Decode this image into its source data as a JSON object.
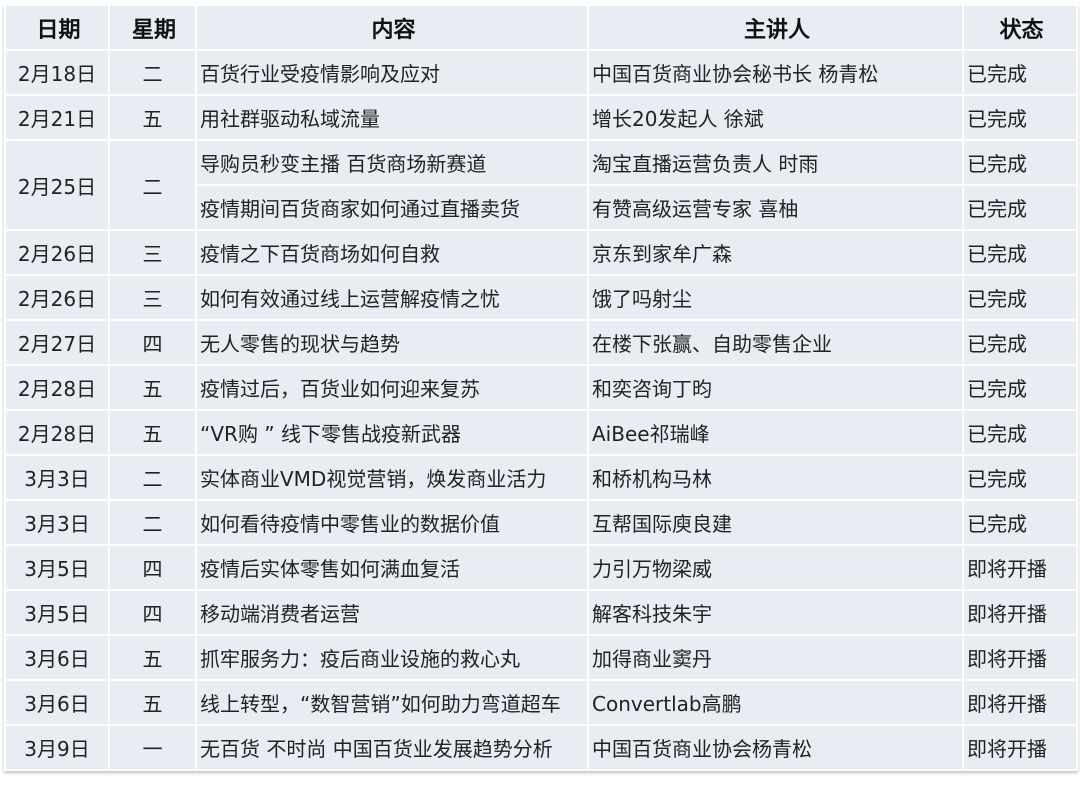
{
  "headers": [
    "日期",
    "星期",
    "内容",
    "主讲人",
    "状态"
  ],
  "rows": [
    {
      "date": "2月18日",
      "weekday": "二",
      "topic": "百货行业受疫情影响及应对",
      "speaker": "中国百货商业协会秘书长 杨青松",
      "status": "已完成"
    },
    {
      "date": "2月21日",
      "weekday": "五",
      "topic": "用社群驱动私域流量",
      "speaker": "增长20发起人  徐斌",
      "status": "已完成"
    },
    {
      "date": "2月25日",
      "weekday": "二",
      "topic": "导购员秒变主播 百货商场新赛道",
      "speaker": "淘宝直播运营负责人 时雨",
      "status": "已完成"
    },
    {
      "date": "",
      "weekday": "",
      "topic": "疫情期间百货商家如何通过直播卖货",
      "speaker": "有赞高级运营专家 喜柚",
      "status": "已完成"
    },
    {
      "date": "2月26日",
      "weekday": "三",
      "topic": "疫情之下百货商场如何自救",
      "speaker": "京东到家牟广森",
      "status": "已完成"
    },
    {
      "date": "2月26日",
      "weekday": "三",
      "topic": "如何有效通过线上运营解疫情之忧",
      "speaker": "饿了吗射尘",
      "status": "已完成"
    },
    {
      "date": "2月27日",
      "weekday": "四",
      "topic": "无人零售的现状与趋势",
      "speaker": "在楼下张赢、自助零售企业",
      "status": "已完成"
    },
    {
      "date": "2月28日",
      "weekday": "五",
      "topic": "疫情过后，百货业如何迎来复苏",
      "speaker": "和奕咨询丁昀",
      "status": "已完成"
    },
    {
      "date": "2月28日",
      "weekday": "五",
      "topic": "“VR购 ” 线下零售战疫新武器",
      "speaker": "AiBee祁瑞峰",
      "status": "已完成"
    },
    {
      "date": "3月3日",
      "weekday": "二",
      "topic": "实体商业VMD视觉营销，焕发商业活力",
      "speaker": "和桥机构马林",
      "status": "已完成"
    },
    {
      "date": "3月3日",
      "weekday": "二",
      "topic": "如何看待疫情中零售业的数据价值",
      "speaker": "互帮国际庾良建",
      "status": "已完成"
    },
    {
      "date": "3月5日",
      "weekday": "四",
      "topic": "疫情后实体零售如何满血复活",
      "speaker": "力引万物梁威",
      "status": "即将开播"
    },
    {
      "date": "3月5日",
      "weekday": "四",
      "topic": "移动端消费者运营",
      "speaker": "解客科技朱宇",
      "status": "即将开播"
    },
    {
      "date": "3月6日",
      "weekday": "五",
      "topic": "抓牢服务力：疫后商业设施的救心丸",
      "speaker": "加得商业窦丹",
      "status": "即将开播"
    },
    {
      "date": "3月6日",
      "weekday": "五",
      "topic": "线上转型，“数智营销”如何助力弯道超车",
      "speaker": "Convertlab高鹏",
      "status": "即将开播"
    },
    {
      "date": "3月9日",
      "weekday": "一",
      "topic": "无百货 不时尚 中国百货业发展趋势分析",
      "speaker": "中国百货商业协会杨青松",
      "status": "即将开播"
    }
  ]
}
